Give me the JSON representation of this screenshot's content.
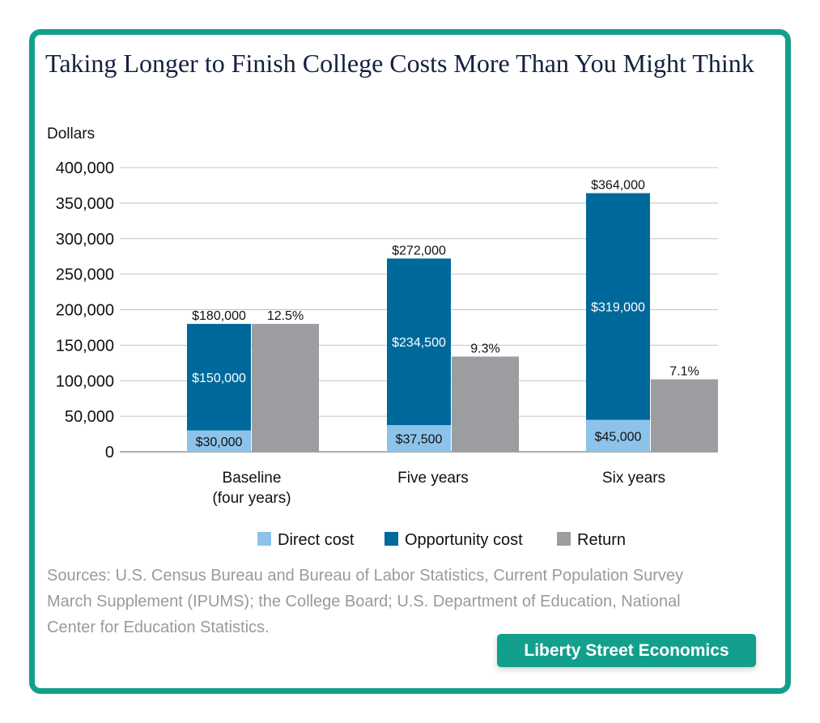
{
  "title": "Taking Longer to Finish College Costs More Than You Might Think",
  "sources": "Sources: U.S. Census Bureau and Bureau of Labor Statistics, Current Population Survey March Supplement (IPUMS); the College Board; U.S. Department of Education, National Center for Education Statistics.",
  "brand": "Liberty Street Economics",
  "colors": {
    "direct_cost": "#8dc3ea",
    "opportunity_cost": "#00699b",
    "return": "#9c9da1",
    "border": "#12a08d"
  },
  "chart_data": {
    "type": "bar",
    "ylabel": "Dollars",
    "ylim": [
      0,
      400000
    ],
    "yticks": [
      "0",
      "50,000",
      "100,000",
      "150,000",
      "200,000",
      "250,000",
      "300,000",
      "350,000",
      "400,000"
    ],
    "grid": true,
    "legend_position": "bottom",
    "categories": [
      [
        "Baseline",
        "(four years)"
      ],
      [
        "Five years"
      ],
      [
        "Six years"
      ]
    ],
    "series": [
      {
        "name": "Direct cost",
        "stack": "cost",
        "values": [
          30000,
          37500,
          45000
        ],
        "labels": [
          "$30,000",
          "$37,500",
          "$45,000"
        ]
      },
      {
        "name": "Opportunity cost",
        "stack": "cost",
        "values": [
          150000,
          234500,
          319000
        ],
        "labels": [
          "$150,000",
          "$234,500",
          "$319,000"
        ]
      },
      {
        "name": "Return",
        "stack": "return",
        "values": [
          180000,
          134000,
          102000
        ],
        "labels": [
          "12.5%",
          "9.3%",
          "7.1%"
        ]
      }
    ],
    "totals": [
      {
        "value": 180000,
        "label": "$180,000"
      },
      {
        "value": 272000,
        "label": "$272,000"
      },
      {
        "value": 364000,
        "label": "$364,000"
      }
    ]
  }
}
